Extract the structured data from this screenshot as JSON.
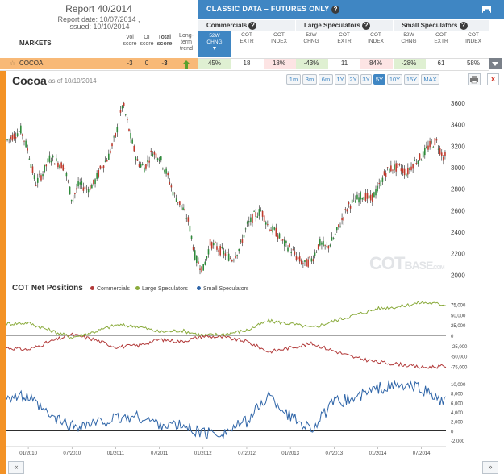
{
  "report": {
    "title": "Report 40/2014",
    "date_line": "Report date: 10/07/2014 ,",
    "issued_line": "issued: 10/10/2014"
  },
  "table_header": {
    "markets": "MARKETS",
    "vol_score": [
      "Vol",
      "score"
    ],
    "oi_score": [
      "OI",
      "score"
    ],
    "total_score": [
      "Total",
      "score"
    ],
    "trend": [
      "Long-",
      "term",
      "trend"
    ]
  },
  "classic": {
    "title": "CLASSIC DATA – FUTURES ONLY",
    "groups": [
      "Commercials",
      "Large Speculators",
      "Small Speculators"
    ],
    "columns": [
      [
        "52W",
        "CHNG"
      ],
      [
        "COT",
        "EXTR"
      ],
      [
        "COT",
        "INDEX"
      ]
    ]
  },
  "row": {
    "market": "COCOA",
    "vol_score": "-3",
    "oi_score": "0",
    "total_score": "-3",
    "values": [
      "45%",
      "18",
      "18%",
      "-43%",
      "11",
      "84%",
      "-28%",
      "61",
      "58%"
    ]
  },
  "chart_header": {
    "title": "Cocoa",
    "as_of": "as of 10/10/2014",
    "ranges": [
      "1m",
      "3m",
      "6m",
      "1Y",
      "2Y",
      "3Y",
      "5Y",
      "10Y",
      "15Y",
      "MAX"
    ],
    "active_range": "5Y",
    "close_label": "x"
  },
  "cot_section": {
    "title": "COT Net Positions",
    "legend": [
      "Commercials",
      "Large Speculators",
      "Small Speculators"
    ]
  },
  "watermark": {
    "main": "COT",
    "sub": "BASE",
    "suffix": ".COM"
  },
  "nav": {
    "prev": "«",
    "next": "»"
  },
  "colors": {
    "accent": "#3f86c3",
    "commercials": "#b23a3a",
    "large_specs": "#8aab3c",
    "small_specs": "#2f65a8",
    "up_candle": "#2e8b3a",
    "down_candle": "#c0392b"
  },
  "chart_data": [
    {
      "type": "candlestick",
      "title": "Cocoa",
      "ylim": [
        1950,
        3750
      ],
      "yticks": [
        2000,
        2200,
        2400,
        2600,
        2800,
        3000,
        3200,
        3400,
        3600
      ],
      "xticks": [
        "01/2010",
        "07/2010",
        "01/2011",
        "07/2011",
        "01/2012",
        "07/2012",
        "01/2013",
        "07/2013",
        "01/2014",
        "07/2014"
      ],
      "x_range": [
        "10/2009",
        "10/2014"
      ],
      "close_path": [
        {
          "x": "10/2009",
          "y": 3250
        },
        {
          "x": "11/2009",
          "y": 3300
        },
        {
          "x": "12/2009",
          "y": 3350
        },
        {
          "x": "01/2010",
          "y": 3150
        },
        {
          "x": "02/2010",
          "y": 2850
        },
        {
          "x": "03/2010",
          "y": 2950
        },
        {
          "x": "04/2010",
          "y": 3100
        },
        {
          "x": "05/2010",
          "y": 3050
        },
        {
          "x": "06/2010",
          "y": 3000
        },
        {
          "x": "07/2010",
          "y": 2700
        },
        {
          "x": "08/2010",
          "y": 2850
        },
        {
          "x": "09/2010",
          "y": 2800
        },
        {
          "x": "10/2010",
          "y": 2850
        },
        {
          "x": "11/2010",
          "y": 3000
        },
        {
          "x": "12/2010",
          "y": 3100
        },
        {
          "x": "01/2011",
          "y": 3300
        },
        {
          "x": "02/2011",
          "y": 3600
        },
        {
          "x": "03/2011",
          "y": 3300
        },
        {
          "x": "04/2011",
          "y": 3050
        },
        {
          "x": "05/2011",
          "y": 3000
        },
        {
          "x": "06/2011",
          "y": 3150
        },
        {
          "x": "07/2011",
          "y": 3100
        },
        {
          "x": "08/2011",
          "y": 2950
        },
        {
          "x": "09/2011",
          "y": 2750
        },
        {
          "x": "10/2011",
          "y": 2650
        },
        {
          "x": "11/2011",
          "y": 2500
        },
        {
          "x": "12/2011",
          "y": 2150
        },
        {
          "x": "01/2012",
          "y": 2050
        },
        {
          "x": "02/2012",
          "y": 2300
        },
        {
          "x": "03/2012",
          "y": 2250
        },
        {
          "x": "04/2012",
          "y": 2200
        },
        {
          "x": "05/2012",
          "y": 2150
        },
        {
          "x": "06/2012",
          "y": 2250
        },
        {
          "x": "07/2012",
          "y": 2450
        },
        {
          "x": "08/2012",
          "y": 2550
        },
        {
          "x": "09/2012",
          "y": 2600
        },
        {
          "x": "10/2012",
          "y": 2450
        },
        {
          "x": "11/2012",
          "y": 2400
        },
        {
          "x": "12/2012",
          "y": 2300
        },
        {
          "x": "01/2013",
          "y": 2250
        },
        {
          "x": "02/2013",
          "y": 2150
        },
        {
          "x": "03/2013",
          "y": 2100
        },
        {
          "x": "04/2013",
          "y": 2150
        },
        {
          "x": "05/2013",
          "y": 2300
        },
        {
          "x": "06/2013",
          "y": 2250
        },
        {
          "x": "07/2013",
          "y": 2350
        },
        {
          "x": "08/2013",
          "y": 2500
        },
        {
          "x": "09/2013",
          "y": 2650
        },
        {
          "x": "10/2013",
          "y": 2700
        },
        {
          "x": "11/2013",
          "y": 2750
        },
        {
          "x": "12/2013",
          "y": 2700
        },
        {
          "x": "01/2014",
          "y": 2800
        },
        {
          "x": "02/2014",
          "y": 2950
        },
        {
          "x": "03/2014",
          "y": 3000
        },
        {
          "x": "04/2014",
          "y": 3000
        },
        {
          "x": "05/2014",
          "y": 2950
        },
        {
          "x": "06/2014",
          "y": 3050
        },
        {
          "x": "07/2014",
          "y": 3100
        },
        {
          "x": "08/2014",
          "y": 3200
        },
        {
          "x": "09/2014",
          "y": 3250
        },
        {
          "x": "10/2014",
          "y": 3100
        }
      ]
    },
    {
      "type": "line",
      "title": "COT Net Positions",
      "ylim": [
        -90000,
        90000
      ],
      "yticks": [
        75000,
        50000,
        25000,
        0,
        -25000,
        -50000,
        -75000
      ],
      "xticks": [
        "01/2010",
        "07/2010",
        "01/2011",
        "07/2011",
        "01/2012",
        "07/2012",
        "01/2013",
        "07/2013",
        "01/2014",
        "07/2014"
      ],
      "series": [
        {
          "name": "Commercials",
          "values": [
            {
              "x": "10/2009",
              "y": -30000
            },
            {
              "x": "01/2010",
              "y": -35000
            },
            {
              "x": "04/2010",
              "y": -15000
            },
            {
              "x": "07/2010",
              "y": 2000
            },
            {
              "x": "10/2010",
              "y": -10000
            },
            {
              "x": "01/2011",
              "y": -28000
            },
            {
              "x": "04/2011",
              "y": -25000
            },
            {
              "x": "07/2011",
              "y": -10000
            },
            {
              "x": "10/2011",
              "y": -15000
            },
            {
              "x": "01/2012",
              "y": -2000
            },
            {
              "x": "04/2012",
              "y": -5000
            },
            {
              "x": "07/2012",
              "y": -15000
            },
            {
              "x": "10/2012",
              "y": -40000
            },
            {
              "x": "01/2013",
              "y": -30000
            },
            {
              "x": "04/2013",
              "y": -20000
            },
            {
              "x": "07/2013",
              "y": -38000
            },
            {
              "x": "10/2013",
              "y": -55000
            },
            {
              "x": "01/2014",
              "y": -65000
            },
            {
              "x": "04/2014",
              "y": -70000
            },
            {
              "x": "07/2014",
              "y": -78000
            },
            {
              "x": "10/2014",
              "y": -75000
            }
          ]
        },
        {
          "name": "Large Speculators",
          "values": [
            {
              "x": "10/2009",
              "y": 28000
            },
            {
              "x": "01/2010",
              "y": 30000
            },
            {
              "x": "04/2010",
              "y": 12000
            },
            {
              "x": "07/2010",
              "y": -5000
            },
            {
              "x": "10/2010",
              "y": 8000
            },
            {
              "x": "01/2011",
              "y": 25000
            },
            {
              "x": "04/2011",
              "y": 22000
            },
            {
              "x": "07/2011",
              "y": 8000
            },
            {
              "x": "10/2011",
              "y": 12000
            },
            {
              "x": "01/2012",
              "y": 0
            },
            {
              "x": "04/2012",
              "y": 3000
            },
            {
              "x": "07/2012",
              "y": 12000
            },
            {
              "x": "10/2012",
              "y": 35000
            },
            {
              "x": "01/2013",
              "y": 28000
            },
            {
              "x": "04/2013",
              "y": 18000
            },
            {
              "x": "07/2013",
              "y": 35000
            },
            {
              "x": "10/2013",
              "y": 50000
            },
            {
              "x": "01/2014",
              "y": 65000
            },
            {
              "x": "04/2014",
              "y": 70000
            },
            {
              "x": "07/2014",
              "y": 80000
            },
            {
              "x": "10/2014",
              "y": 75000
            }
          ]
        }
      ]
    },
    {
      "type": "line",
      "ylim": [
        -3000,
        11000
      ],
      "yticks": [
        10000,
        8000,
        6000,
        4000,
        2000,
        0,
        -2000
      ],
      "series": [
        {
          "name": "Small Speculators",
          "values": [
            {
              "x": "10/2009",
              "y": 7500
            },
            {
              "x": "01/2010",
              "y": 7000
            },
            {
              "x": "04/2010",
              "y": 3000
            },
            {
              "x": "07/2010",
              "y": 1000
            },
            {
              "x": "10/2010",
              "y": 1500
            },
            {
              "x": "01/2011",
              "y": 2500
            },
            {
              "x": "04/2011",
              "y": 3000
            },
            {
              "x": "07/2011",
              "y": 1500
            },
            {
              "x": "10/2011",
              "y": 1000
            },
            {
              "x": "01/2012",
              "y": -500
            },
            {
              "x": "04/2012",
              "y": -300
            },
            {
              "x": "07/2012",
              "y": 2000
            },
            {
              "x": "10/2012",
              "y": 7500
            },
            {
              "x": "01/2013",
              "y": 3000
            },
            {
              "x": "04/2013",
              "y": 500
            },
            {
              "x": "07/2013",
              "y": 6000
            },
            {
              "x": "10/2013",
              "y": 7000
            },
            {
              "x": "01/2014",
              "y": 9000
            },
            {
              "x": "04/2014",
              "y": 9500
            },
            {
              "x": "07/2014",
              "y": 9000
            },
            {
              "x": "10/2014",
              "y": 6000
            }
          ]
        }
      ]
    }
  ]
}
